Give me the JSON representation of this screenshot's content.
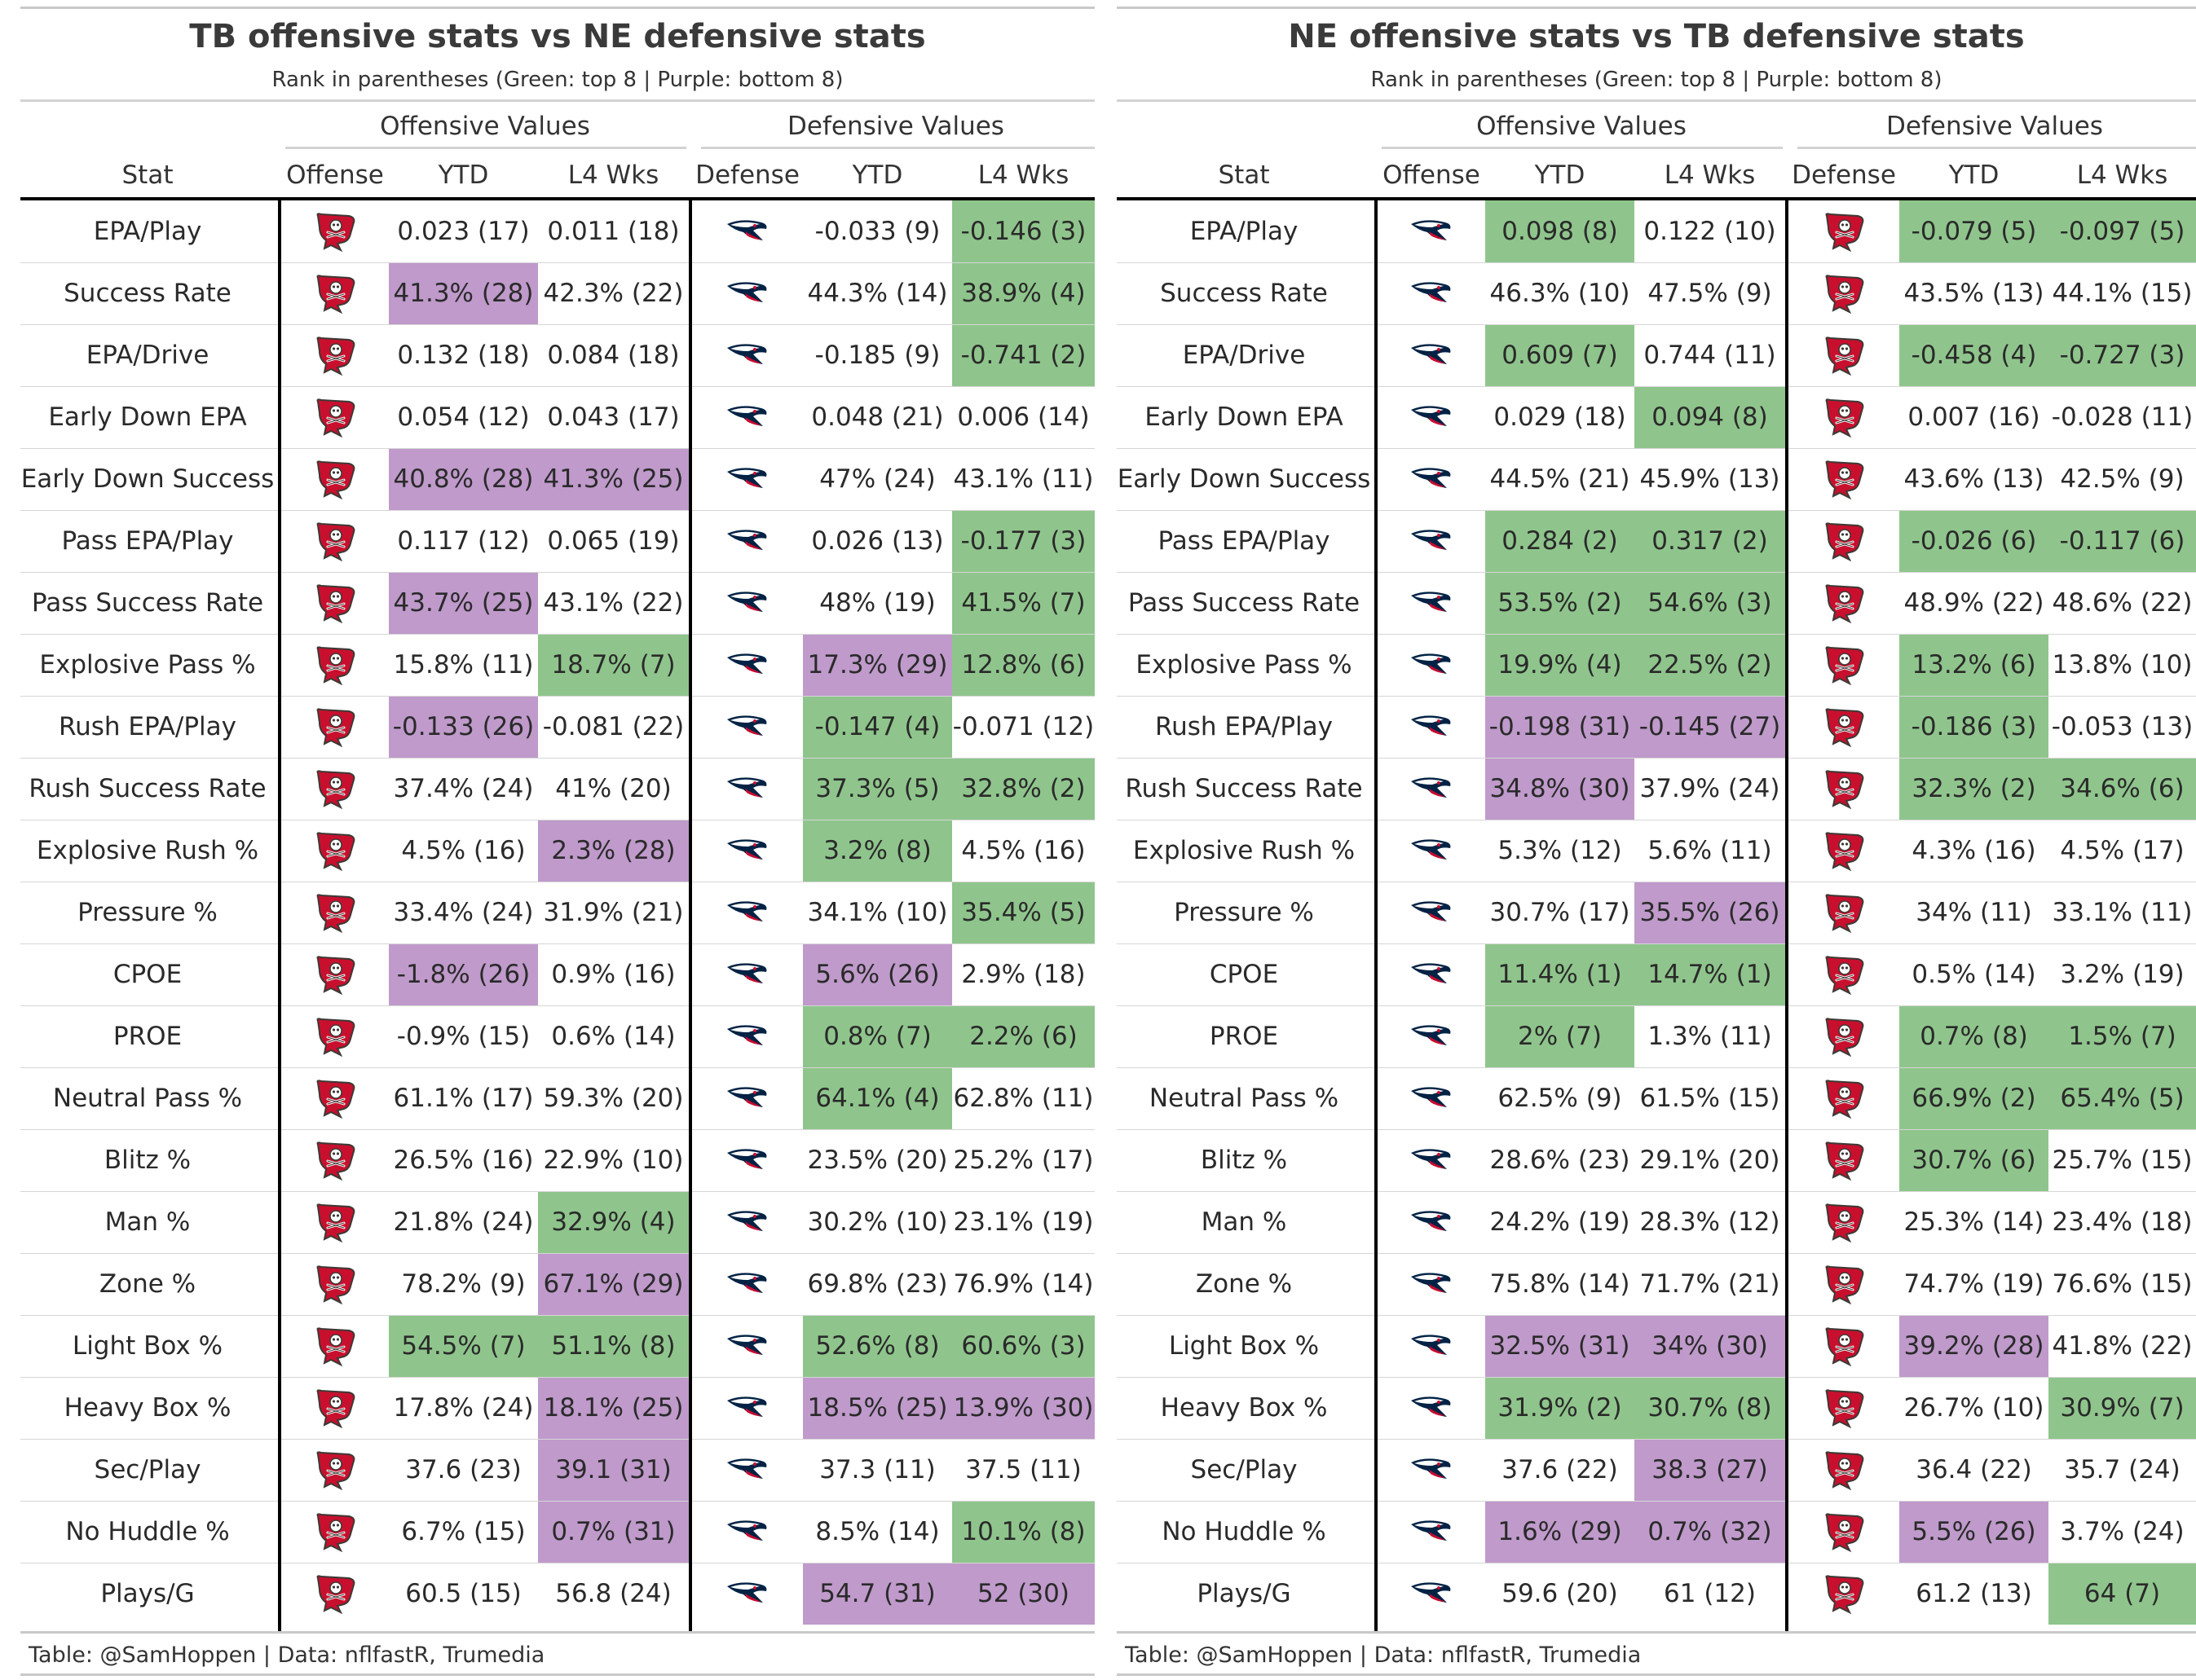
{
  "panels": [
    {
      "title": "TB offensive stats vs NE defensive stats",
      "subtitle": "Rank in parentheses (Green: top 8 | Purple: bottom 8)",
      "spanners": {
        "offense": "Offensive Values",
        "defense": "Defensive Values"
      },
      "columns": {
        "stat": "Stat",
        "offense": "Offense",
        "off_ytd": "YTD",
        "off_l4": "L4 Wks",
        "defense": "Defense",
        "def_ytd": "YTD",
        "def_l4": "L4 Wks"
      },
      "offense_logo": "buccaneers-logo-icon",
      "defense_logo": "patriots-logo-icon",
      "footer": "Table: @SamHoppen | Data: nflfastR, Trumedia",
      "rows": [
        {
          "stat": "EPA/Play",
          "off_ytd": "0.023 (17)",
          "off_l4": "0.011 (18)",
          "def_ytd": "-0.033 (9)",
          "def_l4": "-0.146 (3)",
          "c": [
            "",
            "",
            "",
            "g"
          ]
        },
        {
          "stat": "Success Rate",
          "off_ytd": "41.3% (28)",
          "off_l4": "42.3% (22)",
          "def_ytd": "44.3% (14)",
          "def_l4": "38.9% (4)",
          "c": [
            "p",
            "",
            "",
            "g"
          ]
        },
        {
          "stat": "EPA/Drive",
          "off_ytd": "0.132 (18)",
          "off_l4": "0.084 (18)",
          "def_ytd": "-0.185 (9)",
          "def_l4": "-0.741 (2)",
          "c": [
            "",
            "",
            "",
            "g"
          ]
        },
        {
          "stat": "Early Down EPA",
          "off_ytd": "0.054 (12)",
          "off_l4": "0.043 (17)",
          "def_ytd": "0.048 (21)",
          "def_l4": "0.006 (14)",
          "c": [
            "",
            "",
            "",
            ""
          ]
        },
        {
          "stat": "Early Down Success",
          "off_ytd": "40.8% (28)",
          "off_l4": "41.3% (25)",
          "def_ytd": "47% (24)",
          "def_l4": "43.1% (11)",
          "c": [
            "p",
            "p",
            "",
            ""
          ]
        },
        {
          "stat": "Pass EPA/Play",
          "off_ytd": "0.117 (12)",
          "off_l4": "0.065 (19)",
          "def_ytd": "0.026 (13)",
          "def_l4": "-0.177 (3)",
          "c": [
            "",
            "",
            "",
            "g"
          ]
        },
        {
          "stat": "Pass Success Rate",
          "off_ytd": "43.7% (25)",
          "off_l4": "43.1% (22)",
          "def_ytd": "48% (19)",
          "def_l4": "41.5% (7)",
          "c": [
            "p",
            "",
            "",
            "g"
          ]
        },
        {
          "stat": "Explosive Pass %",
          "off_ytd": "15.8% (11)",
          "off_l4": "18.7% (7)",
          "def_ytd": "17.3% (29)",
          "def_l4": "12.8% (6)",
          "c": [
            "",
            "g",
            "p",
            "g"
          ]
        },
        {
          "stat": "Rush EPA/Play",
          "off_ytd": "-0.133 (26)",
          "off_l4": "-0.081 (22)",
          "def_ytd": "-0.147 (4)",
          "def_l4": "-0.071 (12)",
          "c": [
            "p",
            "",
            "g",
            ""
          ]
        },
        {
          "stat": "Rush Success Rate",
          "off_ytd": "37.4% (24)",
          "off_l4": "41% (20)",
          "def_ytd": "37.3% (5)",
          "def_l4": "32.8% (2)",
          "c": [
            "",
            "",
            "g",
            "g"
          ]
        },
        {
          "stat": "Explosive Rush %",
          "off_ytd": "4.5% (16)",
          "off_l4": "2.3% (28)",
          "def_ytd": "3.2% (8)",
          "def_l4": "4.5% (16)",
          "c": [
            "",
            "p",
            "g",
            ""
          ]
        },
        {
          "stat": "Pressure %",
          "off_ytd": "33.4% (24)",
          "off_l4": "31.9% (21)",
          "def_ytd": "34.1% (10)",
          "def_l4": "35.4% (5)",
          "c": [
            "",
            "",
            "",
            "g"
          ]
        },
        {
          "stat": "CPOE",
          "off_ytd": "-1.8% (26)",
          "off_l4": "0.9% (16)",
          "def_ytd": "5.6% (26)",
          "def_l4": "2.9% (18)",
          "c": [
            "p",
            "",
            "p",
            ""
          ]
        },
        {
          "stat": "PROE",
          "off_ytd": "-0.9% (15)",
          "off_l4": "0.6% (14)",
          "def_ytd": "0.8% (7)",
          "def_l4": "2.2% (6)",
          "c": [
            "",
            "",
            "g",
            "g"
          ]
        },
        {
          "stat": "Neutral Pass %",
          "off_ytd": "61.1% (17)",
          "off_l4": "59.3% (20)",
          "def_ytd": "64.1% (4)",
          "def_l4": "62.8% (11)",
          "c": [
            "",
            "",
            "g",
            ""
          ]
        },
        {
          "stat": "Blitz %",
          "off_ytd": "26.5% (16)",
          "off_l4": "22.9% (10)",
          "def_ytd": "23.5% (20)",
          "def_l4": "25.2% (17)",
          "c": [
            "",
            "",
            "",
            ""
          ]
        },
        {
          "stat": "Man %",
          "off_ytd": "21.8% (24)",
          "off_l4": "32.9% (4)",
          "def_ytd": "30.2% (10)",
          "def_l4": "23.1% (19)",
          "c": [
            "",
            "g",
            "",
            ""
          ]
        },
        {
          "stat": "Zone %",
          "off_ytd": "78.2% (9)",
          "off_l4": "67.1% (29)",
          "def_ytd": "69.8% (23)",
          "def_l4": "76.9% (14)",
          "c": [
            "",
            "p",
            "",
            ""
          ]
        },
        {
          "stat": "Light Box %",
          "off_ytd": "54.5% (7)",
          "off_l4": "51.1% (8)",
          "def_ytd": "52.6% (8)",
          "def_l4": "60.6% (3)",
          "c": [
            "g",
            "g",
            "g",
            "g"
          ]
        },
        {
          "stat": "Heavy Box %",
          "off_ytd": "17.8% (24)",
          "off_l4": "18.1% (25)",
          "def_ytd": "18.5% (25)",
          "def_l4": "13.9% (30)",
          "c": [
            "",
            "p",
            "p",
            "p"
          ]
        },
        {
          "stat": "Sec/Play",
          "off_ytd": "37.6 (23)",
          "off_l4": "39.1 (31)",
          "def_ytd": "37.3 (11)",
          "def_l4": "37.5 (11)",
          "c": [
            "",
            "p",
            "",
            ""
          ]
        },
        {
          "stat": "No Huddle %",
          "off_ytd": "6.7% (15)",
          "off_l4": "0.7% (31)",
          "def_ytd": "8.5% (14)",
          "def_l4": "10.1% (8)",
          "c": [
            "",
            "p",
            "",
            "g"
          ]
        },
        {
          "stat": "Plays/G",
          "off_ytd": "60.5 (15)",
          "off_l4": "56.8 (24)",
          "def_ytd": "54.7 (31)",
          "def_l4": "52 (30)",
          "c": [
            "",
            "",
            "p",
            "p"
          ]
        }
      ]
    },
    {
      "title": "NE offensive stats vs TB defensive stats",
      "subtitle": "Rank in parentheses (Green: top 8 | Purple: bottom 8)",
      "spanners": {
        "offense": "Offensive Values",
        "defense": "Defensive Values"
      },
      "columns": {
        "stat": "Stat",
        "offense": "Offense",
        "off_ytd": "YTD",
        "off_l4": "L4 Wks",
        "defense": "Defense",
        "def_ytd": "YTD",
        "def_l4": "L4 Wks"
      },
      "offense_logo": "patriots-logo-icon",
      "defense_logo": "buccaneers-logo-icon",
      "footer": "Table: @SamHoppen | Data: nflfastR, Trumedia",
      "rows": [
        {
          "stat": "EPA/Play",
          "off_ytd": "0.098 (8)",
          "off_l4": "0.122 (10)",
          "def_ytd": "-0.079 (5)",
          "def_l4": "-0.097 (5)",
          "c": [
            "g",
            "",
            "g",
            "g"
          ]
        },
        {
          "stat": "Success Rate",
          "off_ytd": "46.3% (10)",
          "off_l4": "47.5% (9)",
          "def_ytd": "43.5% (13)",
          "def_l4": "44.1% (15)",
          "c": [
            "",
            "",
            "",
            ""
          ]
        },
        {
          "stat": "EPA/Drive",
          "off_ytd": "0.609 (7)",
          "off_l4": "0.744 (11)",
          "def_ytd": "-0.458 (4)",
          "def_l4": "-0.727 (3)",
          "c": [
            "g",
            "",
            "g",
            "g"
          ]
        },
        {
          "stat": "Early Down EPA",
          "off_ytd": "0.029 (18)",
          "off_l4": "0.094 (8)",
          "def_ytd": "0.007 (16)",
          "def_l4": "-0.028 (11)",
          "c": [
            "",
            "g",
            "",
            ""
          ]
        },
        {
          "stat": "Early Down Success",
          "off_ytd": "44.5% (21)",
          "off_l4": "45.9% (13)",
          "def_ytd": "43.6% (13)",
          "def_l4": "42.5% (9)",
          "c": [
            "",
            "",
            "",
            ""
          ]
        },
        {
          "stat": "Pass EPA/Play",
          "off_ytd": "0.284 (2)",
          "off_l4": "0.317 (2)",
          "def_ytd": "-0.026 (6)",
          "def_l4": "-0.117 (6)",
          "c": [
            "g",
            "g",
            "g",
            "g"
          ]
        },
        {
          "stat": "Pass Success Rate",
          "off_ytd": "53.5% (2)",
          "off_l4": "54.6% (3)",
          "def_ytd": "48.9% (22)",
          "def_l4": "48.6% (22)",
          "c": [
            "g",
            "g",
            "",
            ""
          ]
        },
        {
          "stat": "Explosive Pass %",
          "off_ytd": "19.9% (4)",
          "off_l4": "22.5% (2)",
          "def_ytd": "13.2% (6)",
          "def_l4": "13.8% (10)",
          "c": [
            "g",
            "g",
            "g",
            ""
          ]
        },
        {
          "stat": "Rush EPA/Play",
          "off_ytd": "-0.198 (31)",
          "off_l4": "-0.145 (27)",
          "def_ytd": "-0.186 (3)",
          "def_l4": "-0.053 (13)",
          "c": [
            "p",
            "p",
            "g",
            ""
          ]
        },
        {
          "stat": "Rush Success Rate",
          "off_ytd": "34.8% (30)",
          "off_l4": "37.9% (24)",
          "def_ytd": "32.3% (2)",
          "def_l4": "34.6% (6)",
          "c": [
            "p",
            "",
            "g",
            "g"
          ]
        },
        {
          "stat": "Explosive Rush %",
          "off_ytd": "5.3% (12)",
          "off_l4": "5.6% (11)",
          "def_ytd": "4.3% (16)",
          "def_l4": "4.5% (17)",
          "c": [
            "",
            "",
            "",
            ""
          ]
        },
        {
          "stat": "Pressure %",
          "off_ytd": "30.7% (17)",
          "off_l4": "35.5% (26)",
          "def_ytd": "34% (11)",
          "def_l4": "33.1% (11)",
          "c": [
            "",
            "p",
            "",
            ""
          ]
        },
        {
          "stat": "CPOE",
          "off_ytd": "11.4% (1)",
          "off_l4": "14.7% (1)",
          "def_ytd": "0.5% (14)",
          "def_l4": "3.2% (19)",
          "c": [
            "g",
            "g",
            "",
            ""
          ]
        },
        {
          "stat": "PROE",
          "off_ytd": "2% (7)",
          "off_l4": "1.3% (11)",
          "def_ytd": "0.7% (8)",
          "def_l4": "1.5% (7)",
          "c": [
            "g",
            "",
            "g",
            "g"
          ]
        },
        {
          "stat": "Neutral Pass %",
          "off_ytd": "62.5% (9)",
          "off_l4": "61.5% (15)",
          "def_ytd": "66.9% (2)",
          "def_l4": "65.4% (5)",
          "c": [
            "",
            "",
            "g",
            "g"
          ]
        },
        {
          "stat": "Blitz %",
          "off_ytd": "28.6% (23)",
          "off_l4": "29.1% (20)",
          "def_ytd": "30.7% (6)",
          "def_l4": "25.7% (15)",
          "c": [
            "",
            "",
            "g",
            ""
          ]
        },
        {
          "stat": "Man %",
          "off_ytd": "24.2% (19)",
          "off_l4": "28.3% (12)",
          "def_ytd": "25.3% (14)",
          "def_l4": "23.4% (18)",
          "c": [
            "",
            "",
            "",
            ""
          ]
        },
        {
          "stat": "Zone %",
          "off_ytd": "75.8% (14)",
          "off_l4": "71.7% (21)",
          "def_ytd": "74.7% (19)",
          "def_l4": "76.6% (15)",
          "c": [
            "",
            "",
            "",
            ""
          ]
        },
        {
          "stat": "Light Box %",
          "off_ytd": "32.5% (31)",
          "off_l4": "34% (30)",
          "def_ytd": "39.2% (28)",
          "def_l4": "41.8% (22)",
          "c": [
            "p",
            "p",
            "p",
            ""
          ]
        },
        {
          "stat": "Heavy Box %",
          "off_ytd": "31.9% (2)",
          "off_l4": "30.7% (8)",
          "def_ytd": "26.7% (10)",
          "def_l4": "30.9% (7)",
          "c": [
            "g",
            "g",
            "",
            "g"
          ]
        },
        {
          "stat": "Sec/Play",
          "off_ytd": "37.6 (22)",
          "off_l4": "38.3 (27)",
          "def_ytd": "36.4 (22)",
          "def_l4": "35.7 (24)",
          "c": [
            "",
            "p",
            "",
            ""
          ]
        },
        {
          "stat": "No Huddle %",
          "off_ytd": "1.6% (29)",
          "off_l4": "0.7% (32)",
          "def_ytd": "5.5% (26)",
          "def_l4": "3.7% (24)",
          "c": [
            "p",
            "p",
            "p",
            ""
          ]
        },
        {
          "stat": "Plays/G",
          "off_ytd": "59.6 (20)",
          "off_l4": "61 (12)",
          "def_ytd": "61.2 (13)",
          "def_l4": "64 (7)",
          "c": [
            "",
            "",
            "",
            "g"
          ]
        }
      ]
    }
  ]
}
